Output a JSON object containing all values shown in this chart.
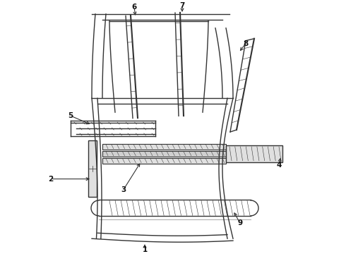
{
  "background_color": "#ffffff",
  "line_color": "#333333",
  "label_color": "#111111",
  "figsize": [
    4.9,
    3.6
  ],
  "dpi": 100
}
